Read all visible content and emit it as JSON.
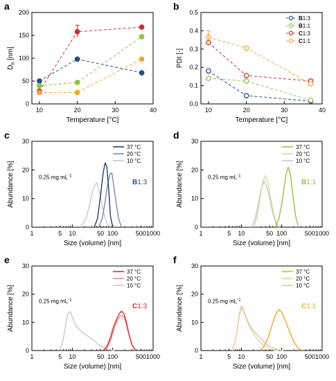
{
  "colors": {
    "B13": "#1f4e8c",
    "B11": "#8cc63f",
    "C13": "#d62b2b",
    "C11": "#f5a623",
    "B13_37": "#1f3f6e",
    "B13_20": "#6f8fb8",
    "B13_10": "#c8c8c8",
    "B11_37": "#8cc63f",
    "B11_20": "#c5e09b",
    "B11_10": "#c8c8c8",
    "C13_37": "#d62b2b",
    "C13_20": "#ec8a8a",
    "C13_10": "#c8c8c8",
    "C11_37": "#f5a623",
    "C11_20": "#f8cb8a",
    "C11_10": "#c8c8c8"
  },
  "chart_data": [
    {
      "id": "a",
      "letter": "a",
      "type": "scatter",
      "xlabel": "Temperature [°C]",
      "ylabel": "D",
      "ylabel_sub": "h",
      "ylabel_unit": " [nm]",
      "xlim": [
        8,
        40
      ],
      "ylim": [
        0,
        200
      ],
      "xticks": [
        10,
        20,
        30,
        40
      ],
      "yticks": [
        0,
        50,
        100,
        150,
        200
      ],
      "filled": true,
      "series": [
        {
          "key": "B13",
          "x": [
            10,
            20,
            37
          ],
          "y": [
            50,
            98,
            68
          ]
        },
        {
          "key": "B11",
          "x": [
            10,
            20,
            37
          ],
          "y": [
            40,
            47,
            147
          ]
        },
        {
          "key": "C13",
          "x": [
            10,
            20,
            37
          ],
          "y": [
            28,
            158,
            168
          ]
        },
        {
          "key": "C11",
          "x": [
            10,
            20,
            37
          ],
          "y": [
            25,
            25,
            98
          ]
        }
      ]
    },
    {
      "id": "b",
      "letter": "b",
      "type": "scatter",
      "xlabel": "Temperature [°C]",
      "ylabel": "PDI [-]",
      "xlim": [
        8,
        40
      ],
      "ylim": [
        0,
        0.5
      ],
      "xticks": [
        10,
        20,
        30,
        40
      ],
      "yticks": [
        "0.0",
        "0.1",
        "0.2",
        "0.3",
        "0.4",
        "0.5"
      ],
      "filled": false,
      "series": [
        {
          "key": "B13",
          "x": [
            10,
            20,
            37
          ],
          "y": [
            0.18,
            0.045,
            0.015
          ]
        },
        {
          "key": "B11",
          "x": [
            10,
            20,
            37
          ],
          "y": [
            0.14,
            0.125,
            0.02
          ]
        },
        {
          "key": "C13",
          "x": [
            10,
            20,
            37
          ],
          "y": [
            0.335,
            0.155,
            0.125
          ]
        },
        {
          "key": "C11",
          "x": [
            10,
            20,
            37
          ],
          "y": [
            0.365,
            0.305,
            0.11
          ]
        }
      ],
      "legend": [
        {
          "key": "B13",
          "bold": "B",
          "rest": "1:3"
        },
        {
          "key": "B11",
          "bold": "B",
          "rest": "1:1"
        },
        {
          "key": "C13",
          "bold": "C",
          "rest": "1:3"
        },
        {
          "key": "C11",
          "bold": "C",
          "rest": "1:1"
        }
      ]
    },
    {
      "id": "c",
      "letter": "c",
      "type": "line",
      "logx": true,
      "xlabel": "Size (volume) [nm]",
      "ylabel": "Abundance [%]",
      "xlim": [
        1,
        1000
      ],
      "ylim": [
        0,
        30
      ],
      "xticks": [
        1,
        10,
        100,
        1000
      ],
      "xticklabels": [
        "1",
        "10",
        "100",
        "1000"
      ],
      "yticks": [
        0,
        10,
        20,
        30
      ],
      "minor_xticks": [
        5,
        50,
        500
      ],
      "minor_xticklabels": [
        "5",
        "50",
        "500"
      ],
      "note": "0.25 mg mL",
      "note_sup": "-1",
      "sample_bold": "B",
      "sample_rest": "1:3",
      "sample_color": "B13",
      "legend": [
        {
          "key": "B13_37",
          "label": "37 °C"
        },
        {
          "key": "B13_20",
          "label": "20 °C"
        },
        {
          "key": "B13_10",
          "label": "10 °C"
        }
      ],
      "series": [
        {
          "key": "B13_10",
          "x": [
            16,
            22,
            28,
            34,
            40,
            48,
            56,
            65,
            75,
            88
          ],
          "y": [
            0,
            3,
            9,
            14,
            15.5,
            12,
            7,
            3,
            1,
            0
          ]
        },
        {
          "key": "B13_20",
          "x": [
            45,
            55,
            65,
            75,
            85,
            95,
            105,
            120,
            140,
            165
          ],
          "y": [
            0,
            3,
            9,
            15,
            18.5,
            19,
            15,
            9,
            3,
            0
          ]
        },
        {
          "key": "B13_37",
          "x": [
            35,
            42,
            50,
            58,
            65,
            72,
            80,
            88,
            100
          ],
          "y": [
            0,
            3,
            11,
            19,
            22.5,
            21,
            13,
            4,
            0
          ]
        }
      ]
    },
    {
      "id": "d",
      "letter": "d",
      "type": "line",
      "logx": true,
      "xlabel": "Size (volume) [nm]",
      "ylabel": "Abundance [%]",
      "xlim": [
        1,
        1000
      ],
      "ylim": [
        0,
        30
      ],
      "xticks": [
        1,
        10,
        100,
        1000
      ],
      "xticklabels": [
        "1",
        "10",
        "100",
        "1000"
      ],
      "yticks": [
        0,
        10,
        20,
        30
      ],
      "minor_xticks": [
        5,
        50,
        500
      ],
      "minor_xticklabels": [
        "5",
        "50",
        "500"
      ],
      "note": "0.25 mg mL",
      "note_sup": "-1",
      "sample_bold": "B",
      "sample_rest": "1:1",
      "sample_color": "B11",
      "legend": [
        {
          "key": "B11_37",
          "label": "37 °C"
        },
        {
          "key": "B11_20",
          "label": "20 °C"
        },
        {
          "key": "B11_10",
          "label": "10 °C"
        }
      ],
      "series": [
        {
          "key": "B11_10",
          "x": [
            18,
            22,
            27,
            32,
            37,
            43,
            50,
            60,
            72,
            85
          ],
          "y": [
            0,
            3,
            9,
            14,
            16,
            14,
            10,
            5,
            1,
            0
          ]
        },
        {
          "key": "B11_20",
          "x": [
            20,
            24,
            29,
            34,
            39,
            45,
            52,
            62,
            75,
            90
          ],
          "y": [
            0,
            3,
            10,
            16,
            18,
            16,
            11,
            5,
            1,
            0
          ]
        },
        {
          "key": "B11_37",
          "x": [
            70,
            85,
            100,
            115,
            130,
            145,
            165,
            190,
            220,
            260
          ],
          "y": [
            0,
            3,
            8,
            14,
            19,
            21,
            18,
            11,
            4,
            0
          ]
        }
      ]
    },
    {
      "id": "e",
      "letter": "e",
      "type": "line",
      "logx": true,
      "xlabel": "Size (volume) [nm]",
      "ylabel": "Abundance [%]",
      "xlim": [
        1,
        1000
      ],
      "ylim": [
        0,
        30
      ],
      "xticks": [
        1,
        10,
        100,
        1000
      ],
      "xticklabels": [
        "1",
        "10",
        "100",
        "1000"
      ],
      "yticks": [
        0,
        10,
        20,
        30
      ],
      "minor_xticks": [
        5,
        50,
        500
      ],
      "minor_xticklabels": [
        "5",
        "50",
        "500"
      ],
      "note": "0.25 mg mL",
      "note_sup": "-1",
      "sample_bold": "C",
      "sample_rest": "1:3",
      "sample_color": "C13",
      "legend": [
        {
          "key": "C13_37",
          "label": "37 °C"
        },
        {
          "key": "C13_20",
          "label": "20 °C"
        },
        {
          "key": "C13_10",
          "label": "10 °C"
        }
      ],
      "series": [
        {
          "key": "C13_10",
          "x": [
            5,
            6,
            7,
            8,
            9,
            10,
            12,
            15,
            18,
            22,
            28,
            35,
            45,
            60,
            80,
            110
          ],
          "y": [
            0,
            4,
            10,
            13.5,
            13.8,
            12,
            9,
            7.5,
            6.5,
            5.5,
            4.5,
            3.5,
            2,
            1,
            0.3,
            0
          ]
        },
        {
          "key": "C13_20",
          "x": [
            65,
            80,
            95,
            110,
            130,
            150,
            170,
            195,
            220,
            260,
            310,
            380
          ],
          "y": [
            0,
            2,
            5,
            8,
            10.5,
            12,
            12.5,
            11.5,
            9,
            5,
            1.5,
            0
          ]
        },
        {
          "key": "C13_37",
          "x": [
            60,
            75,
            90,
            105,
            125,
            145,
            165,
            190,
            215,
            250,
            300,
            370
          ],
          "y": [
            0,
            2,
            5,
            8.5,
            11,
            13,
            14,
            13,
            10.5,
            6,
            2,
            0
          ]
        }
      ]
    },
    {
      "id": "f",
      "letter": "f",
      "type": "line",
      "logx": true,
      "xlabel": "Size (volume) [nm]",
      "ylabel": "Abundance [%]",
      "xlim": [
        1,
        1000
      ],
      "ylim": [
        0,
        30
      ],
      "xticks": [
        1,
        10,
        100,
        1000
      ],
      "xticklabels": [
        "1",
        "10",
        "100",
        "1000"
      ],
      "yticks": [
        0,
        10,
        20,
        30
      ],
      "minor_xticks": [
        5,
        50,
        500
      ],
      "minor_xticklabels": [
        "5",
        "50",
        "500"
      ],
      "note": "0.25 mg mL",
      "note_sup": "-1",
      "sample_bold": "C",
      "sample_rest": "1:1",
      "sample_color": "C11",
      "legend": [
        {
          "key": "C11_37",
          "label": "37 °C"
        },
        {
          "key": "C11_20",
          "label": "20 °C"
        },
        {
          "key": "C11_10",
          "label": "10 °C"
        }
      ],
      "series": [
        {
          "key": "C11_10",
          "x": [
            6,
            7,
            8,
            9,
            10,
            11,
            13,
            16,
            20,
            25,
            32,
            40,
            50,
            65,
            85,
            110
          ],
          "y": [
            0,
            3,
            8,
            13,
            15.8,
            15,
            12,
            9,
            7,
            5.5,
            4,
            2.5,
            1.5,
            0.7,
            0.2,
            0
          ]
        },
        {
          "key": "C11_20",
          "x": [
            6,
            7,
            8,
            9,
            10,
            11,
            13,
            16,
            20,
            25,
            32,
            40,
            50,
            65,
            85
          ],
          "y": [
            0,
            3,
            7.5,
            12.5,
            15,
            14.5,
            11.5,
            8.5,
            6,
            4,
            2.5,
            1.3,
            0.5,
            0.1,
            0
          ]
        },
        {
          "key": "C11_37",
          "x": [
            30,
            38,
            46,
            55,
            65,
            75,
            85,
            100,
            120,
            145,
            175,
            210,
            260,
            320
          ],
          "y": [
            0,
            2,
            4.5,
            8,
            11.5,
            13.5,
            14.5,
            13.5,
            11,
            8,
            5,
            2.5,
            0.7,
            0
          ]
        }
      ]
    }
  ]
}
